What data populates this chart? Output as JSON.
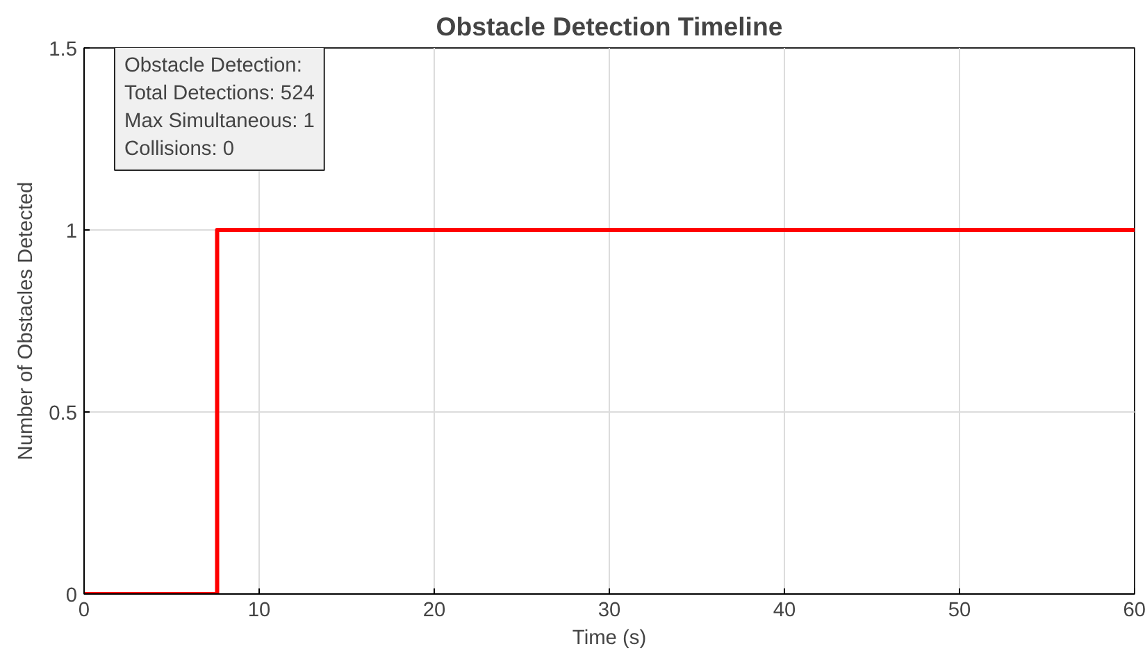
{
  "chart_data": {
    "type": "step",
    "title": "Obstacle Detection Timeline",
    "xlabel": "Time (s)",
    "ylabel": "Number of Obstacles Detected",
    "x": [
      0,
      7.6,
      60
    ],
    "series": [
      {
        "color": "#ff0000",
        "values": [
          0,
          1,
          1
        ]
      }
    ],
    "xlim": [
      0,
      60
    ],
    "ylim": [
      0,
      1.5
    ],
    "xticks": [
      0,
      10,
      20,
      30,
      40,
      50,
      60
    ],
    "yticks": [
      0,
      0.5,
      1,
      1.5
    ],
    "grid": true,
    "annotations": [
      "Obstacle Detection:\nTotal Detections: 524\nMax Simultaneous: 1\nCollisions: 0"
    ]
  }
}
